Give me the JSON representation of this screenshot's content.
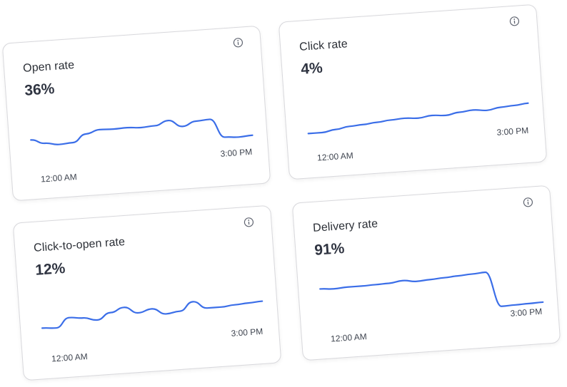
{
  "cards": [
    {
      "title": "Open rate",
      "value": "36%",
      "time_start": "12:00 AM",
      "time_end": "3:00 PM",
      "series": [
        0.55,
        0.45,
        0.4,
        0.42,
        0.6,
        0.68,
        0.67,
        0.68,
        0.66,
        0.68,
        0.78,
        0.62,
        0.72,
        0.74,
        0.3,
        0.28,
        0.3
      ]
    },
    {
      "title": "Click rate",
      "value": "4%",
      "time_start": "12:00 AM",
      "time_end": "3:00 PM",
      "series": [
        0.2,
        0.2,
        0.25,
        0.3,
        0.32,
        0.35,
        0.38,
        0.4,
        0.38,
        0.42,
        0.4,
        0.45,
        0.48,
        0.45,
        0.5,
        0.52,
        0.55
      ]
    },
    {
      "title": "Click-to-open rate",
      "value": "12%",
      "time_start": "12:00 AM",
      "time_end": "3:00 PM",
      "series": [
        0.35,
        0.33,
        0.55,
        0.52,
        0.45,
        0.6,
        0.7,
        0.55,
        0.62,
        0.48,
        0.52,
        0.72,
        0.55,
        0.55,
        0.58,
        0.6,
        0.62
      ]
    },
    {
      "title": "Delivery rate",
      "value": "91%",
      "time_start": "12:00 AM",
      "time_end": "3:00 PM",
      "series": [
        0.8,
        0.78,
        0.8,
        0.8,
        0.81,
        0.82,
        0.86,
        0.82,
        0.84,
        0.86,
        0.88,
        0.9,
        0.92,
        0.1,
        0.11,
        0.12,
        0.13
      ]
    }
  ],
  "line_color": "#3b6ee8",
  "info_icon": "info-circle-icon"
}
